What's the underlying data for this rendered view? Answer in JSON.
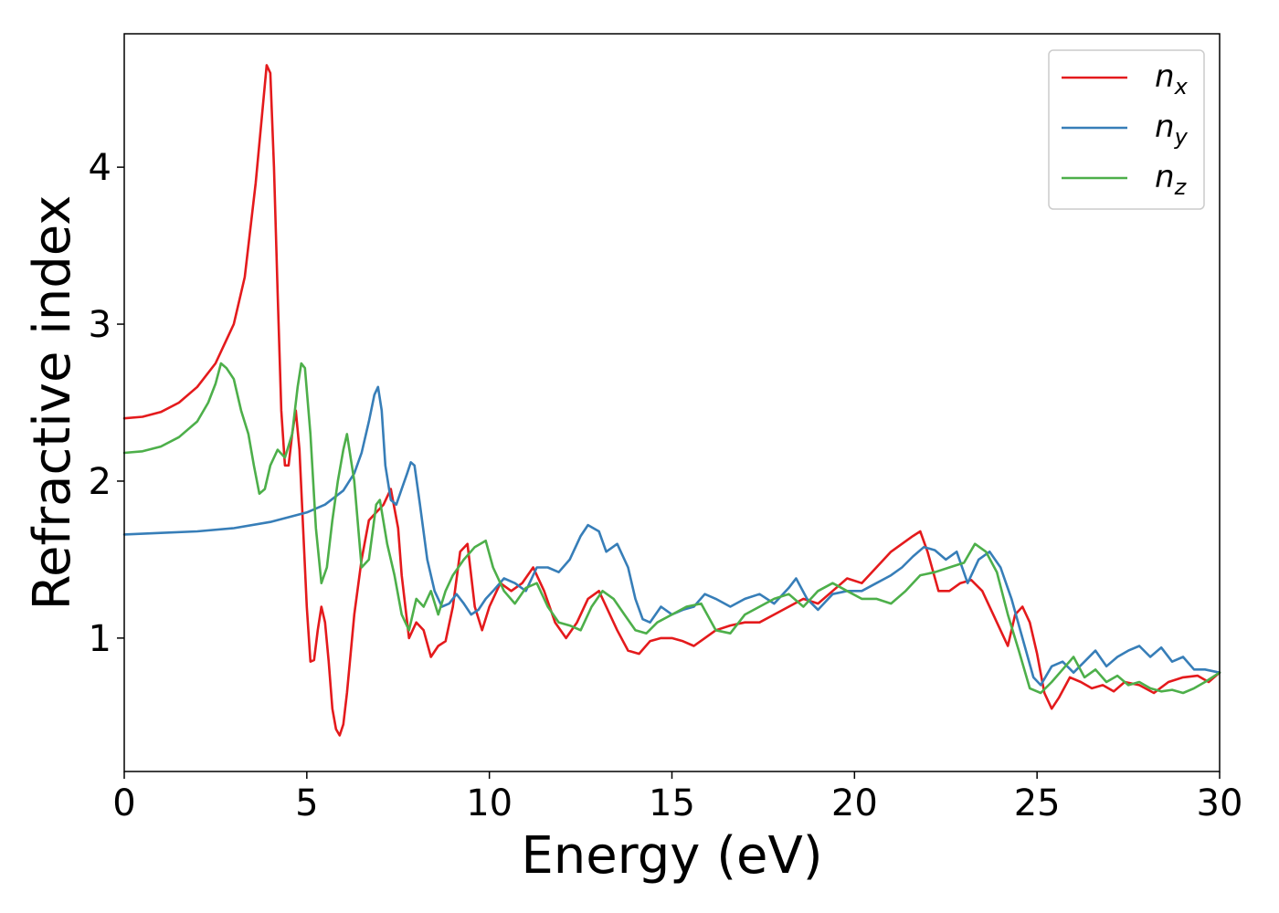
{
  "chart_data": {
    "type": "line",
    "title": "",
    "xlabel": "Energy (eV)",
    "ylabel": "Refractive index",
    "xlim": [
      0,
      30
    ],
    "ylim": [
      0.15,
      4.85
    ],
    "xticks": [
      0,
      5,
      10,
      15,
      20,
      25,
      30
    ],
    "yticks": [
      1,
      2,
      3,
      4
    ],
    "grid": false,
    "legend_position": "top-right",
    "series": [
      {
        "name": "n_x",
        "legend_base": "n",
        "legend_sub": "x",
        "color": "#e41a1c",
        "x": [
          0,
          0.5,
          1,
          1.5,
          2,
          2.5,
          2.8,
          3,
          3.3,
          3.6,
          3.8,
          3.9,
          4.0,
          4.1,
          4.2,
          4.3,
          4.4,
          4.5,
          4.6,
          4.7,
          4.8,
          4.9,
          5.0,
          5.1,
          5.2,
          5.3,
          5.4,
          5.5,
          5.6,
          5.7,
          5.8,
          5.9,
          6.0,
          6.1,
          6.2,
          6.3,
          6.5,
          6.7,
          6.9,
          7.1,
          7.3,
          7.5,
          7.6,
          7.8,
          8.0,
          8.2,
          8.4,
          8.6,
          8.8,
          9.0,
          9.2,
          9.4,
          9.6,
          9.8,
          10.0,
          10.3,
          10.6,
          10.9,
          11.2,
          11.5,
          11.8,
          12.1,
          12.4,
          12.7,
          13.0,
          13.2,
          13.5,
          13.8,
          14.1,
          14.4,
          14.7,
          15.0,
          15.3,
          15.6,
          15.9,
          16.2,
          16.6,
          17.0,
          17.4,
          17.8,
          18.2,
          18.6,
          19.0,
          19.4,
          19.8,
          20.2,
          20.6,
          21.0,
          21.3,
          21.6,
          21.8,
          22.0,
          22.3,
          22.6,
          22.9,
          23.2,
          23.5,
          23.8,
          24.0,
          24.2,
          24.4,
          24.6,
          24.8,
          25.0,
          25.2,
          25.4,
          25.6,
          25.9,
          26.2,
          26.5,
          26.8,
          27.1,
          27.4,
          27.8,
          28.2,
          28.6,
          29.0,
          29.4,
          29.7,
          30.0
        ],
        "y": [
          2.4,
          2.41,
          2.44,
          2.5,
          2.6,
          2.75,
          2.9,
          3.0,
          3.3,
          3.9,
          4.4,
          4.65,
          4.6,
          4.0,
          3.2,
          2.45,
          2.1,
          2.1,
          2.3,
          2.45,
          2.2,
          1.7,
          1.2,
          0.85,
          0.86,
          1.05,
          1.2,
          1.1,
          0.85,
          0.55,
          0.42,
          0.38,
          0.45,
          0.65,
          0.9,
          1.15,
          1.5,
          1.75,
          1.8,
          1.85,
          1.95,
          1.7,
          1.4,
          1.0,
          1.1,
          1.05,
          0.88,
          0.95,
          0.98,
          1.2,
          1.55,
          1.6,
          1.2,
          1.05,
          1.2,
          1.35,
          1.3,
          1.35,
          1.45,
          1.3,
          1.1,
          1.0,
          1.1,
          1.25,
          1.3,
          1.2,
          1.05,
          0.92,
          0.9,
          0.98,
          1.0,
          1.0,
          0.98,
          0.95,
          1.0,
          1.05,
          1.08,
          1.1,
          1.1,
          1.15,
          1.2,
          1.25,
          1.22,
          1.3,
          1.38,
          1.35,
          1.45,
          1.55,
          1.6,
          1.65,
          1.68,
          1.55,
          1.3,
          1.3,
          1.35,
          1.37,
          1.3,
          1.15,
          1.05,
          0.95,
          1.15,
          1.2,
          1.1,
          0.9,
          0.65,
          0.55,
          0.62,
          0.75,
          0.72,
          0.68,
          0.7,
          0.66,
          0.72,
          0.7,
          0.65,
          0.72,
          0.75,
          0.76,
          0.72,
          0.78
        ]
      },
      {
        "name": "n_y",
        "legend_base": "n",
        "legend_sub": "y",
        "color": "#377eb8",
        "x": [
          0,
          1,
          2,
          3,
          4,
          5,
          5.5,
          6,
          6.3,
          6.5,
          6.7,
          6.85,
          6.95,
          7.05,
          7.15,
          7.3,
          7.45,
          7.6,
          7.75,
          7.85,
          7.95,
          8.1,
          8.3,
          8.5,
          8.7,
          8.9,
          9.1,
          9.3,
          9.5,
          9.7,
          9.9,
          10.1,
          10.4,
          10.7,
          11.0,
          11.3,
          11.6,
          11.9,
          12.2,
          12.5,
          12.7,
          13.0,
          13.2,
          13.5,
          13.8,
          14.0,
          14.2,
          14.4,
          14.7,
          15.0,
          15.3,
          15.6,
          15.9,
          16.2,
          16.6,
          17.0,
          17.4,
          17.8,
          18.2,
          18.4,
          18.7,
          19.0,
          19.4,
          19.8,
          20.2,
          20.6,
          21.0,
          21.3,
          21.6,
          21.9,
          22.2,
          22.5,
          22.8,
          23.1,
          23.4,
          23.7,
          24.0,
          24.3,
          24.6,
          24.9,
          25.1,
          25.4,
          25.7,
          26.0,
          26.3,
          26.6,
          26.9,
          27.2,
          27.5,
          27.8,
          28.1,
          28.4,
          28.7,
          29.0,
          29.3,
          29.6,
          30.0
        ],
        "y": [
          1.66,
          1.67,
          1.68,
          1.7,
          1.74,
          1.8,
          1.85,
          1.94,
          2.05,
          2.18,
          2.38,
          2.55,
          2.6,
          2.45,
          2.1,
          1.88,
          1.85,
          1.95,
          2.05,
          2.12,
          2.1,
          1.85,
          1.5,
          1.3,
          1.2,
          1.22,
          1.28,
          1.22,
          1.15,
          1.18,
          1.25,
          1.3,
          1.38,
          1.35,
          1.3,
          1.45,
          1.45,
          1.42,
          1.5,
          1.65,
          1.72,
          1.68,
          1.55,
          1.6,
          1.45,
          1.25,
          1.12,
          1.1,
          1.2,
          1.15,
          1.18,
          1.2,
          1.28,
          1.25,
          1.2,
          1.25,
          1.28,
          1.22,
          1.32,
          1.38,
          1.25,
          1.18,
          1.28,
          1.3,
          1.3,
          1.35,
          1.4,
          1.45,
          1.52,
          1.58,
          1.56,
          1.5,
          1.55,
          1.35,
          1.5,
          1.55,
          1.45,
          1.25,
          1.0,
          0.75,
          0.7,
          0.82,
          0.85,
          0.78,
          0.85,
          0.92,
          0.82,
          0.88,
          0.92,
          0.95,
          0.88,
          0.94,
          0.85,
          0.88,
          0.8,
          0.8,
          0.78
        ]
      },
      {
        "name": "n_z",
        "legend_base": "n",
        "legend_sub": "z",
        "color": "#4daf4a",
        "x": [
          0,
          0.5,
          1,
          1.5,
          2,
          2.3,
          2.5,
          2.65,
          2.8,
          3.0,
          3.2,
          3.4,
          3.55,
          3.7,
          3.85,
          4.0,
          4.2,
          4.4,
          4.6,
          4.75,
          4.85,
          4.95,
          5.1,
          5.25,
          5.4,
          5.55,
          5.7,
          5.85,
          6.0,
          6.1,
          6.3,
          6.5,
          6.7,
          6.9,
          7.0,
          7.2,
          7.4,
          7.6,
          7.8,
          8.0,
          8.2,
          8.4,
          8.6,
          8.8,
          9.0,
          9.3,
          9.6,
          9.9,
          10.1,
          10.4,
          10.7,
          11.0,
          11.3,
          11.6,
          11.9,
          12.2,
          12.5,
          12.8,
          13.1,
          13.4,
          13.7,
          14.0,
          14.3,
          14.6,
          15.0,
          15.4,
          15.8,
          16.2,
          16.6,
          17.0,
          17.4,
          17.8,
          18.2,
          18.6,
          19.0,
          19.4,
          19.8,
          20.2,
          20.6,
          21.0,
          21.4,
          21.8,
          22.2,
          22.6,
          23.0,
          23.3,
          23.6,
          23.9,
          24.2,
          24.5,
          24.8,
          25.1,
          25.4,
          25.7,
          26.0,
          26.3,
          26.6,
          26.9,
          27.2,
          27.5,
          27.8,
          28.1,
          28.4,
          28.7,
          29.0,
          29.3,
          29.6,
          30.0
        ],
        "y": [
          2.18,
          2.19,
          2.22,
          2.28,
          2.38,
          2.5,
          2.62,
          2.75,
          2.72,
          2.65,
          2.45,
          2.3,
          2.1,
          1.92,
          1.95,
          2.1,
          2.2,
          2.15,
          2.3,
          2.6,
          2.75,
          2.72,
          2.3,
          1.7,
          1.35,
          1.45,
          1.75,
          2.0,
          2.2,
          2.3,
          2.0,
          1.45,
          1.5,
          1.85,
          1.88,
          1.6,
          1.4,
          1.15,
          1.05,
          1.25,
          1.2,
          1.3,
          1.15,
          1.3,
          1.4,
          1.5,
          1.58,
          1.62,
          1.45,
          1.3,
          1.22,
          1.32,
          1.35,
          1.2,
          1.1,
          1.08,
          1.05,
          1.2,
          1.3,
          1.25,
          1.15,
          1.05,
          1.03,
          1.1,
          1.15,
          1.2,
          1.22,
          1.05,
          1.03,
          1.15,
          1.2,
          1.25,
          1.28,
          1.2,
          1.3,
          1.35,
          1.3,
          1.25,
          1.25,
          1.22,
          1.3,
          1.4,
          1.42,
          1.45,
          1.48,
          1.6,
          1.55,
          1.42,
          1.15,
          0.92,
          0.68,
          0.65,
          0.72,
          0.8,
          0.88,
          0.75,
          0.8,
          0.72,
          0.76,
          0.7,
          0.72,
          0.68,
          0.66,
          0.67,
          0.65,
          0.68,
          0.72,
          0.78
        ]
      }
    ]
  }
}
